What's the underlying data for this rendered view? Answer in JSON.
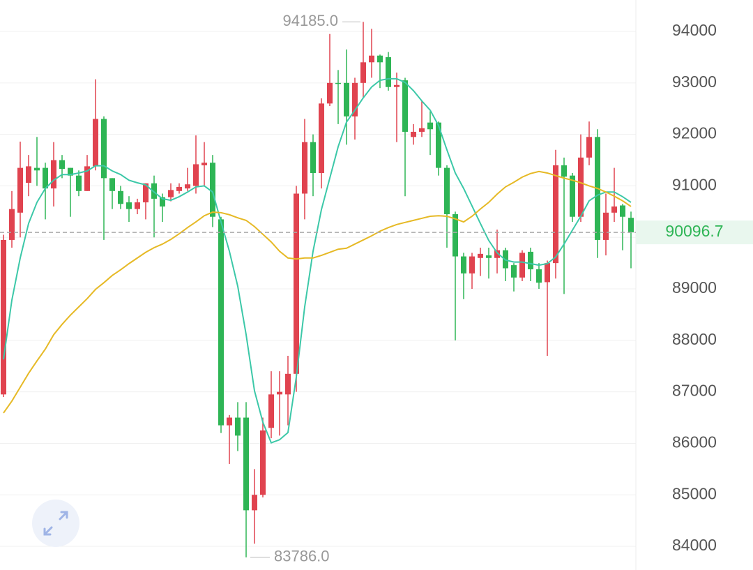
{
  "chart_data": {
    "type": "candlestick",
    "open": [
      86950,
      89950,
      90480,
      91060,
      91350,
      91350,
      90950,
      91500,
      91350,
      91200,
      90900,
      91380,
      92300,
      91150,
      90900,
      90680,
      90550,
      90680,
      91050,
      90780,
      90780,
      90900,
      90950,
      91000,
      91400,
      91450,
      90350,
      86350,
      86500,
      86500,
      84700,
      85000,
      86300,
      86950,
      86950,
      87350,
      90850,
      91850,
      91250,
      92600,
      93000,
      93000,
      92350,
      93000,
      93400,
      93530,
      93500,
      92920,
      93050,
      91950,
      92050,
      92230,
      92230,
      91350,
      90450,
      89630,
      89300,
      89600,
      89650,
      89600,
      89750,
      89460,
      89220,
      89720,
      89380,
      89130,
      89500,
      91400,
      91200,
      90400,
      91550,
      91950,
      89950,
      90480,
      90620,
      90380
    ],
    "high": [
      90050,
      90900,
      91860,
      91600,
      91950,
      91450,
      91850,
      91600,
      91350,
      91300,
      91600,
      93070,
      92350,
      91150,
      91000,
      90800,
      90750,
      91050,
      91200,
      90850,
      91050,
      91050,
      91350,
      91980,
      91850,
      91600,
      90400,
      86550,
      86800,
      86800,
      85500,
      86500,
      87400,
      87400,
      87700,
      91000,
      92300,
      92000,
      92700,
      93950,
      93250,
      93650,
      93100,
      94185,
      94050,
      93550,
      93600,
      93200,
      93100,
      92200,
      92650,
      92450,
      92250,
      91400,
      90500,
      89700,
      89700,
      89800,
      89800,
      90150,
      89800,
      89500,
      89750,
      89800,
      89500,
      89550,
      91700,
      91550,
      91250,
      92000,
      92250,
      92100,
      90850,
      91350,
      90650,
      90500
    ],
    "low": [
      86900,
      89800,
      90000,
      90800,
      91000,
      90350,
      90600,
      91150,
      90400,
      90800,
      90900,
      91300,
      89950,
      90550,
      90550,
      90300,
      90450,
      90350,
      90000,
      90300,
      90700,
      90850,
      90900,
      90850,
      91000,
      90200,
      86200,
      85600,
      85850,
      83786,
      84050,
      84950,
      86100,
      86150,
      86350,
      87000,
      90350,
      90800,
      90950,
      92550,
      92200,
      91800,
      91900,
      92700,
      93100,
      92900,
      92850,
      91850,
      90800,
      91800,
      91950,
      91600,
      91200,
      89800,
      88000,
      88800,
      89000,
      89250,
      89200,
      89300,
      89150,
      88950,
      89150,
      89150,
      89000,
      87700,
      89200,
      88900,
      90300,
      90300,
      91400,
      89600,
      89650,
      90300,
      89750,
      89400
    ],
    "close": [
      89950,
      90550,
      91350,
      91380,
      91300,
      90950,
      91500,
      91330,
      91200,
      90900,
      91380,
      92300,
      91150,
      90900,
      90650,
      90550,
      90680,
      91050,
      90750,
      90600,
      90920,
      90980,
      91030,
      91420,
      91450,
      90400,
      86350,
      86500,
      86150,
      84700,
      85000,
      86250,
      86950,
      87000,
      87350,
      90850,
      91850,
      91250,
      92600,
      93000,
      92980,
      92350,
      93000,
      93400,
      93530,
      93400,
      92920,
      92960,
      92050,
      92050,
      92120,
      92100,
      91350,
      90450,
      89630,
      89300,
      89630,
      89680,
      89600,
      89750,
      89400,
      89220,
      89700,
      89380,
      89120,
      89500,
      91400,
      91180,
      90400,
      91550,
      91950,
      89950,
      90480,
      90600,
      90400,
      90096.7
    ],
    "series": [
      {
        "color": "#3cc8a8",
        "values": [
          87630,
          88780,
          89600,
          90270,
          90680,
          90950,
          91110,
          91220,
          91220,
          91250,
          91290,
          91390,
          91390,
          91290,
          91220,
          91110,
          91060,
          91020,
          90880,
          90750,
          90720,
          90790,
          90880,
          90980,
          91000,
          90880,
          90300,
          89730,
          89050,
          88110,
          87020,
          86410,
          86010,
          86070,
          86210,
          87290,
          88650,
          89730,
          90540,
          91150,
          91760,
          92240,
          92470,
          92710,
          92920,
          93050,
          93080,
          93080,
          93010,
          92850,
          92650,
          92470,
          92170,
          91700,
          91250,
          90950,
          90610,
          90270,
          89940,
          89700,
          89560,
          89520,
          89520,
          89490,
          89460,
          89490,
          89620,
          89870,
          90140,
          90410,
          90710,
          90820,
          90880,
          90880,
          90790,
          90680
        ]
      },
      {
        "color": "#e6b925",
        "values": [
          86590,
          86820,
          87090,
          87360,
          87600,
          87830,
          88110,
          88310,
          88490,
          88650,
          88810,
          88990,
          89120,
          89260,
          89370,
          89490,
          89600,
          89710,
          89800,
          89870,
          89960,
          90070,
          90190,
          90300,
          90420,
          90490,
          90480,
          90440,
          90380,
          90330,
          90210,
          90060,
          89910,
          89730,
          89600,
          89580,
          89600,
          89600,
          89650,
          89710,
          89770,
          89790,
          89870,
          89950,
          90030,
          90120,
          90190,
          90250,
          90290,
          90330,
          90370,
          90410,
          90420,
          90410,
          90360,
          90300,
          90410,
          90550,
          90680,
          90840,
          90980,
          91070,
          91170,
          91240,
          91280,
          91250,
          91200,
          91150,
          91110,
          91060,
          91000,
          90950,
          90880,
          90800,
          90710,
          90600
        ]
      }
    ],
    "up_color": "#e0434f",
    "down_color": "#2eb555",
    "ylim": [
      83540,
      94610
    ],
    "yticks": [
      84000,
      85000,
      86000,
      87000,
      88000,
      89000,
      90000,
      91000,
      92000,
      93000,
      94000
    ],
    "grid": true,
    "max_label": {
      "value": 94185,
      "label": "94185.0"
    },
    "min_label": {
      "value": 83786,
      "label": "83786.0"
    },
    "last_price": 90096.7
  }
}
